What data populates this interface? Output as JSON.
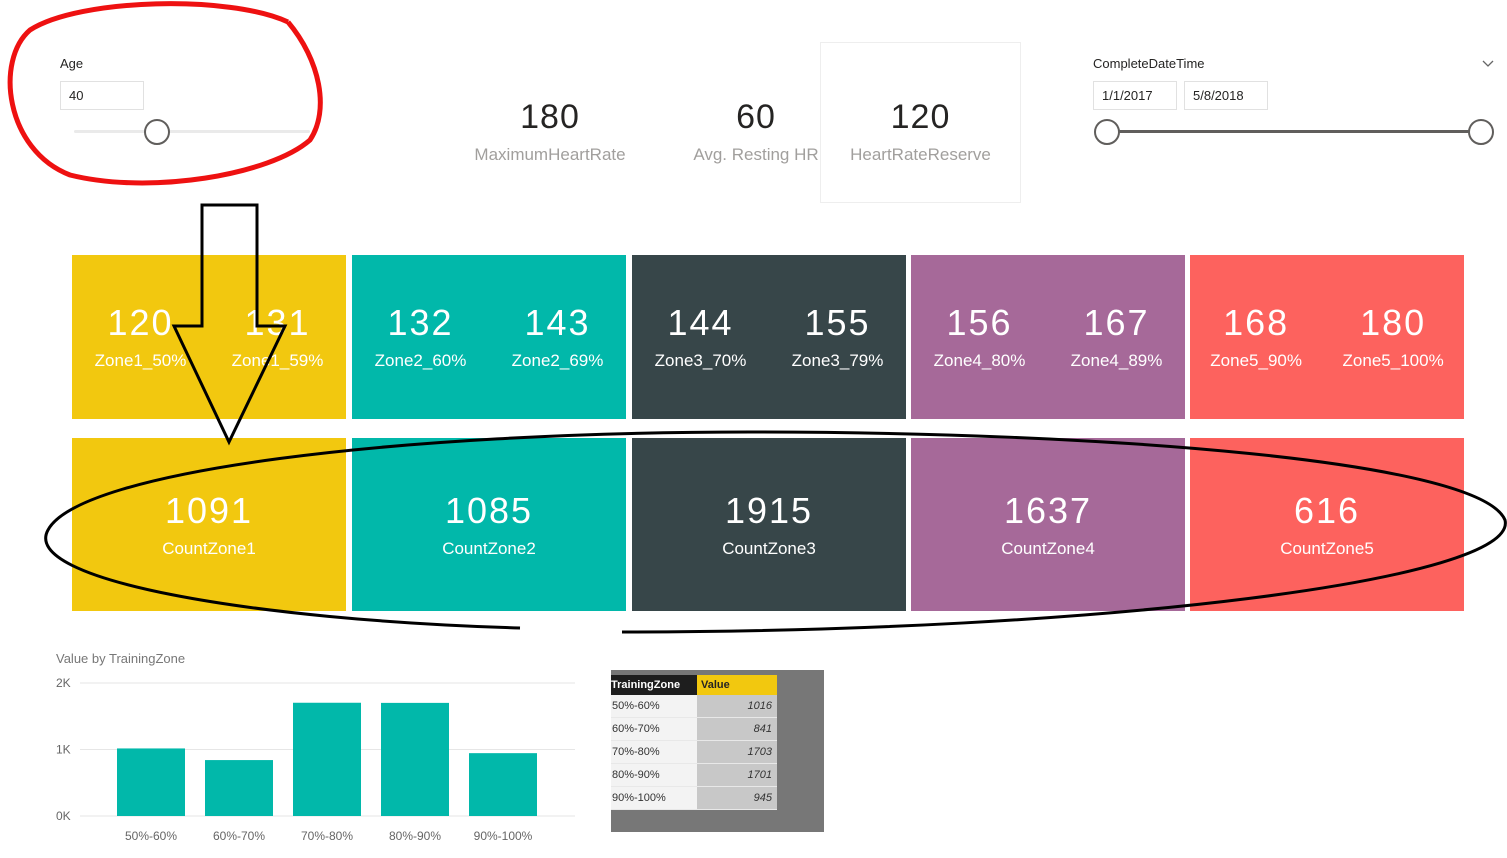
{
  "age_slicer": {
    "label": "Age",
    "value": "40",
    "slider_fraction": 0.35
  },
  "date_slicer": {
    "label": "CompleteDateTime",
    "start": "1/1/2017",
    "end": "5/8/2018"
  },
  "cards": [
    {
      "value": "180",
      "label": "MaximumHeartRate"
    },
    {
      "value": "60",
      "label": "Avg. Resting HR"
    },
    {
      "value": "120",
      "label": "HeartRateReserve"
    }
  ],
  "zones": [
    {
      "color": "#f2c80f",
      "low": {
        "value": "120",
        "label": "Zone1_50%"
      },
      "high": {
        "value": "131",
        "label": "Zone1_59%"
      },
      "count": {
        "value": "1091",
        "label": "CountZone1"
      }
    },
    {
      "color": "#01b8aa",
      "low": {
        "value": "132",
        "label": "Zone2_60%"
      },
      "high": {
        "value": "143",
        "label": "Zone2_69%"
      },
      "count": {
        "value": "1085",
        "label": "CountZone2"
      }
    },
    {
      "color": "#374649",
      "low": {
        "value": "144",
        "label": "Zone3_70%"
      },
      "high": {
        "value": "155",
        "label": "Zone3_79%"
      },
      "count": {
        "value": "1915",
        "label": "CountZone3"
      }
    },
    {
      "color": "#a66999",
      "low": {
        "value": "156",
        "label": "Zone4_80%"
      },
      "high": {
        "value": "167",
        "label": "Zone4_89%"
      },
      "count": {
        "value": "1637",
        "label": "CountZone4"
      }
    },
    {
      "color": "#fd625e",
      "low": {
        "value": "168",
        "label": "Zone5_90%"
      },
      "high": {
        "value": "180",
        "label": "Zone5_100%"
      },
      "count": {
        "value": "616",
        "label": "CountZone5"
      }
    }
  ],
  "chart_data": {
    "type": "bar",
    "title": "Value by TrainingZone",
    "categories": [
      "50%-60%",
      "60%-70%",
      "70%-80%",
      "80%-90%",
      "90%-100%"
    ],
    "values": [
      1016,
      841,
      1703,
      1701,
      945
    ],
    "ylim": [
      0,
      2000
    ],
    "yticks": [
      {
        "value": 0,
        "label": "0K"
      },
      {
        "value": 1000,
        "label": "1K"
      },
      {
        "value": 2000,
        "label": "2K"
      }
    ],
    "bar_color": "#01b8aa",
    "grid": true
  },
  "table": {
    "headers": [
      "TrainingZone",
      "Value"
    ],
    "rows": [
      [
        "50%-60%",
        "1016"
      ],
      [
        "60%-70%",
        "841"
      ],
      [
        "70%-80%",
        "1703"
      ],
      [
        "80%-90%",
        "1701"
      ],
      [
        "90%-100%",
        "945"
      ]
    ]
  }
}
